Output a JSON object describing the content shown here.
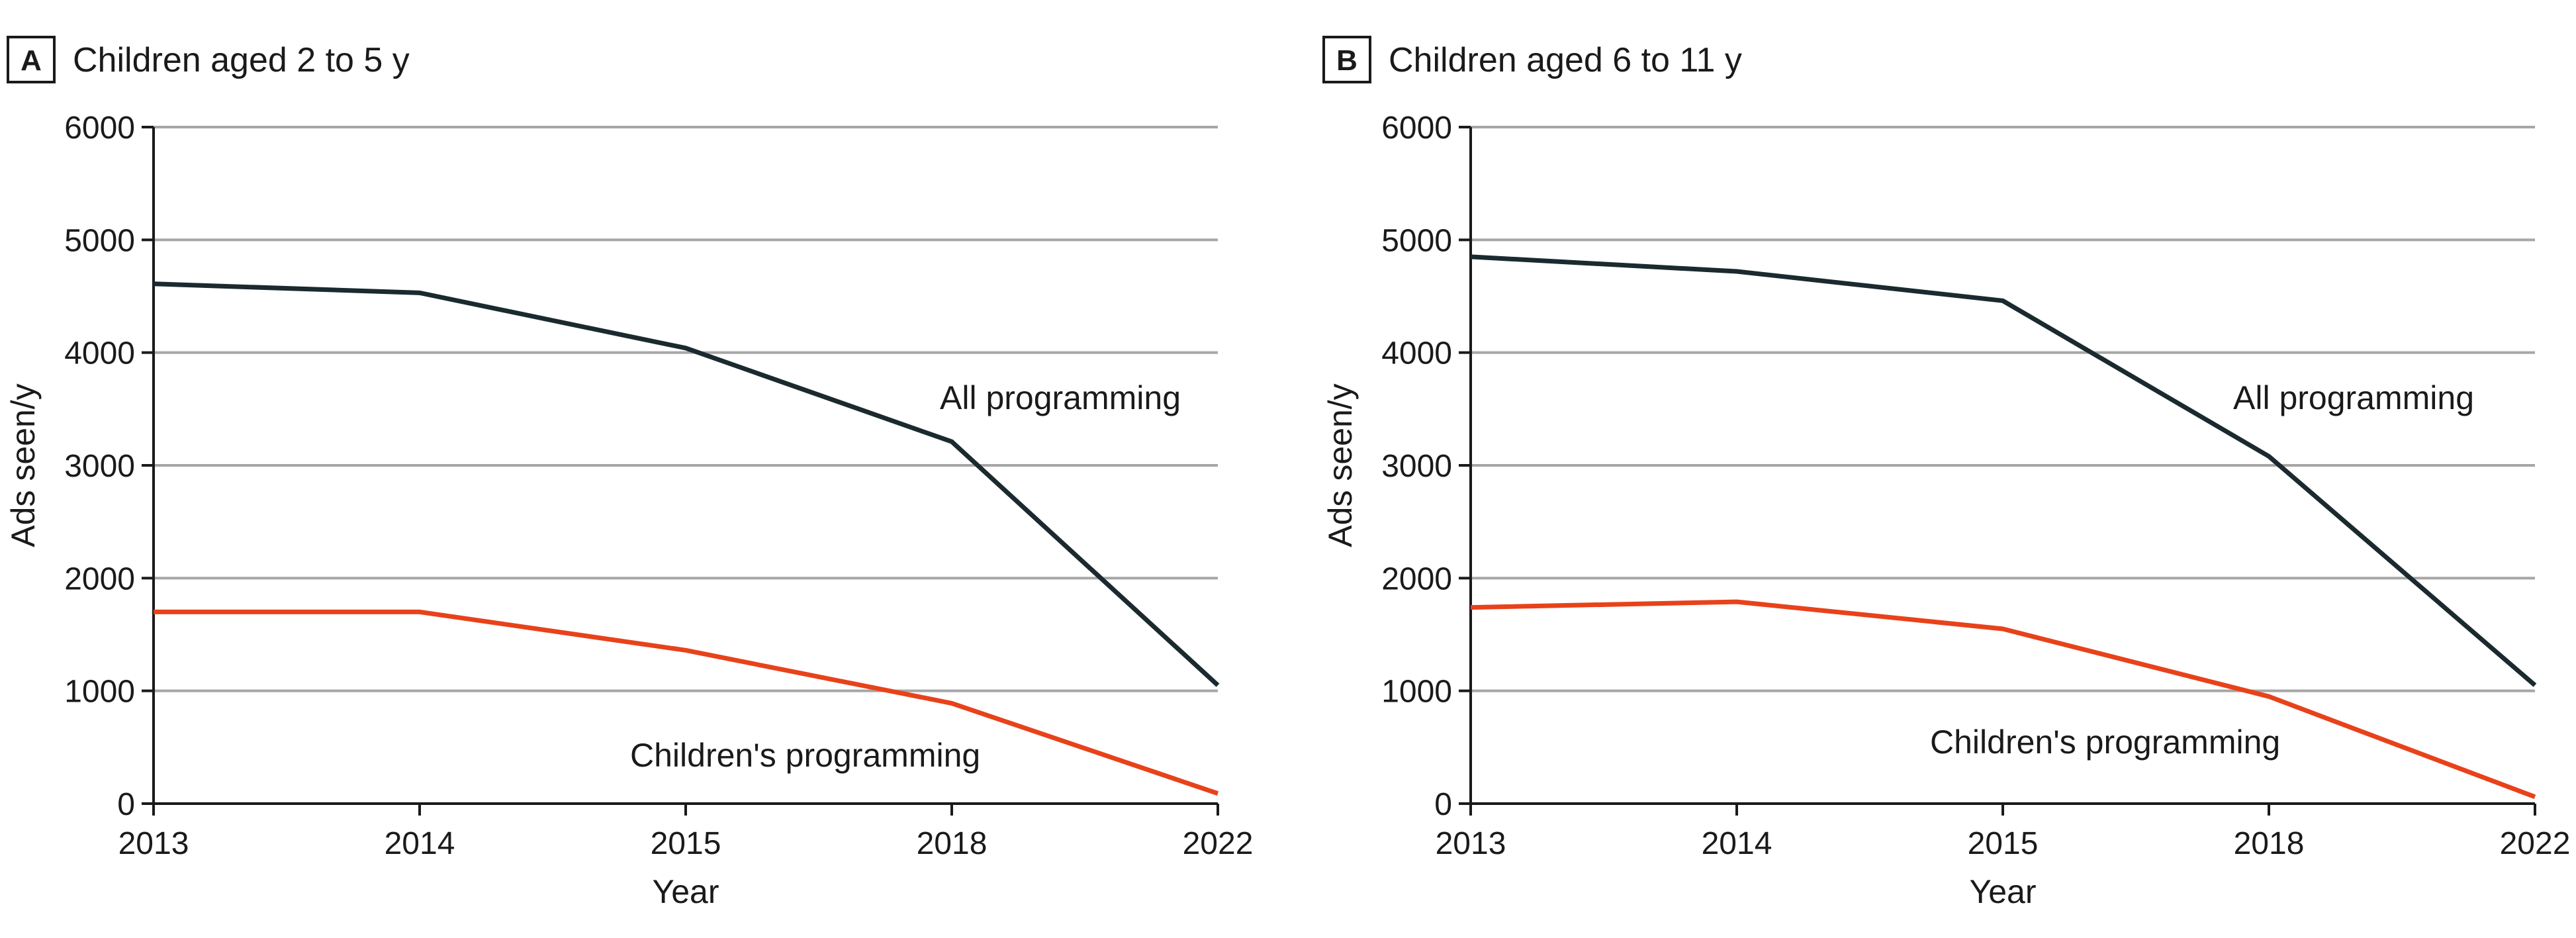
{
  "colors": {
    "all_programming": "#1a2a2e",
    "childrens_programming": "#e8421a",
    "grid": "#a6a6a6",
    "axis": "#1a1a1a"
  },
  "chart_data": [
    {
      "type": "line",
      "panel": "A",
      "title": "Children aged 2 to 5 y",
      "xlabel": "Year",
      "ylabel": "Ads seen/y",
      "categories": [
        "2013",
        "2014",
        "2015",
        "2018",
        "2022"
      ],
      "ylim": [
        0,
        6000
      ],
      "yticks": [
        "0",
        "1000",
        "2000",
        "3000",
        "4000",
        "5000",
        "6000"
      ],
      "grid": true,
      "series": [
        {
          "name": "All programming",
          "color_key": "all_programming",
          "values": [
            4610,
            4530,
            4040,
            3210,
            1050
          ]
        },
        {
          "name": "Children's programming",
          "color_key": "childrens_programming",
          "values": [
            1700,
            1700,
            1360,
            890,
            90
          ]
        }
      ]
    },
    {
      "type": "line",
      "panel": "B",
      "title": "Children aged 6 to 11 y",
      "xlabel": "Year",
      "ylabel": "Ads seen/y",
      "categories": [
        "2013",
        "2014",
        "2015",
        "2018",
        "2022"
      ],
      "ylim": [
        0,
        6000
      ],
      "yticks": [
        "0",
        "1000",
        "2000",
        "3000",
        "4000",
        "5000",
        "6000"
      ],
      "grid": true,
      "series": [
        {
          "name": "All programming",
          "color_key": "all_programming",
          "values": [
            4850,
            4720,
            4460,
            3080,
            1050
          ]
        },
        {
          "name": "Children's programming",
          "color_key": "childrens_programming",
          "values": [
            1740,
            1790,
            1550,
            950,
            60
          ]
        }
      ]
    }
  ]
}
